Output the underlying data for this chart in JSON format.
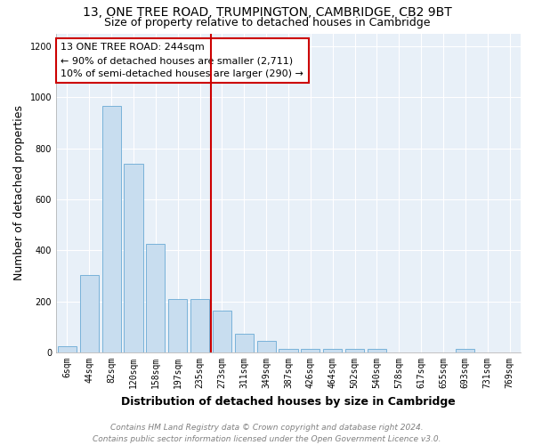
{
  "title1": "13, ONE TREE ROAD, TRUMPINGTON, CAMBRIDGE, CB2 9BT",
  "title2": "Size of property relative to detached houses in Cambridge",
  "xlabel": "Distribution of detached houses by size in Cambridge",
  "ylabel": "Number of detached properties",
  "footer1": "Contains HM Land Registry data © Crown copyright and database right 2024.",
  "footer2": "Contains public sector information licensed under the Open Government Licence v3.0.",
  "annotation_line1": "13 ONE TREE ROAD: 244sqm",
  "annotation_line2": "← 90% of detached houses are smaller (2,711)",
  "annotation_line3": "10% of semi-detached houses are larger (290) →",
  "bar_color": "#c8ddef",
  "bar_edge_color": "#6aaad4",
  "vline_color": "#cc0000",
  "vline_x_index": 6,
  "bins": [
    "6sqm",
    "44sqm",
    "82sqm",
    "120sqm",
    "158sqm",
    "197sqm",
    "235sqm",
    "273sqm",
    "311sqm",
    "349sqm",
    "387sqm",
    "426sqm",
    "464sqm",
    "502sqm",
    "540sqm",
    "578sqm",
    "617sqm",
    "655sqm",
    "693sqm",
    "731sqm",
    "769sqm"
  ],
  "values": [
    25,
    305,
    965,
    740,
    425,
    210,
    210,
    165,
    75,
    47,
    13,
    13,
    13,
    13,
    13,
    0,
    0,
    0,
    13,
    0,
    0
  ],
  "ylim": [
    0,
    1250
  ],
  "yticks": [
    0,
    200,
    400,
    600,
    800,
    1000,
    1200
  ],
  "bg_color": "#e8f0f8",
  "title_fontsize": 10,
  "subtitle_fontsize": 9,
  "axis_label_fontsize": 9,
  "xlabel_fontsize": 9,
  "tick_fontsize": 7,
  "footer_fontsize": 6.5,
  "annot_fontsize": 8
}
